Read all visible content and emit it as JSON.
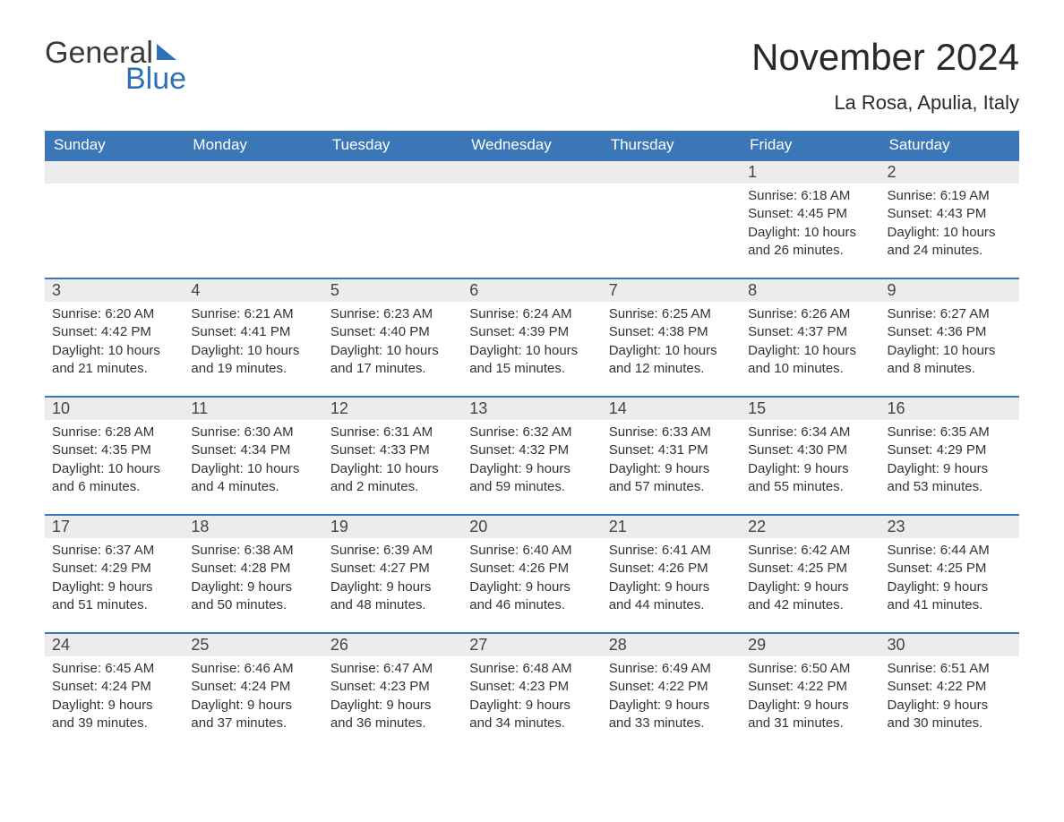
{
  "brand": {
    "word1": "General",
    "word2": "Blue"
  },
  "title": "November 2024",
  "location": "La Rosa, Apulia, Italy",
  "colors": {
    "header_bg": "#3b77b6",
    "header_text": "#ffffff",
    "daynum_bg": "#ececec",
    "row_border": "#3b77b6",
    "brand_blue": "#2f71b8",
    "text": "#333333"
  },
  "day_labels": [
    "Sunday",
    "Monday",
    "Tuesday",
    "Wednesday",
    "Thursday",
    "Friday",
    "Saturday"
  ],
  "weeks": [
    [
      null,
      null,
      null,
      null,
      null,
      {
        "n": "1",
        "sunrise": "Sunrise: 6:18 AM",
        "sunset": "Sunset: 4:45 PM",
        "daylight": "Daylight: 10 hours and 26 minutes."
      },
      {
        "n": "2",
        "sunrise": "Sunrise: 6:19 AM",
        "sunset": "Sunset: 4:43 PM",
        "daylight": "Daylight: 10 hours and 24 minutes."
      }
    ],
    [
      {
        "n": "3",
        "sunrise": "Sunrise: 6:20 AM",
        "sunset": "Sunset: 4:42 PM",
        "daylight": "Daylight: 10 hours and 21 minutes."
      },
      {
        "n": "4",
        "sunrise": "Sunrise: 6:21 AM",
        "sunset": "Sunset: 4:41 PM",
        "daylight": "Daylight: 10 hours and 19 minutes."
      },
      {
        "n": "5",
        "sunrise": "Sunrise: 6:23 AM",
        "sunset": "Sunset: 4:40 PM",
        "daylight": "Daylight: 10 hours and 17 minutes."
      },
      {
        "n": "6",
        "sunrise": "Sunrise: 6:24 AM",
        "sunset": "Sunset: 4:39 PM",
        "daylight": "Daylight: 10 hours and 15 minutes."
      },
      {
        "n": "7",
        "sunrise": "Sunrise: 6:25 AM",
        "sunset": "Sunset: 4:38 PM",
        "daylight": "Daylight: 10 hours and 12 minutes."
      },
      {
        "n": "8",
        "sunrise": "Sunrise: 6:26 AM",
        "sunset": "Sunset: 4:37 PM",
        "daylight": "Daylight: 10 hours and 10 minutes."
      },
      {
        "n": "9",
        "sunrise": "Sunrise: 6:27 AM",
        "sunset": "Sunset: 4:36 PM",
        "daylight": "Daylight: 10 hours and 8 minutes."
      }
    ],
    [
      {
        "n": "10",
        "sunrise": "Sunrise: 6:28 AM",
        "sunset": "Sunset: 4:35 PM",
        "daylight": "Daylight: 10 hours and 6 minutes."
      },
      {
        "n": "11",
        "sunrise": "Sunrise: 6:30 AM",
        "sunset": "Sunset: 4:34 PM",
        "daylight": "Daylight: 10 hours and 4 minutes."
      },
      {
        "n": "12",
        "sunrise": "Sunrise: 6:31 AM",
        "sunset": "Sunset: 4:33 PM",
        "daylight": "Daylight: 10 hours and 2 minutes."
      },
      {
        "n": "13",
        "sunrise": "Sunrise: 6:32 AM",
        "sunset": "Sunset: 4:32 PM",
        "daylight": "Daylight: 9 hours and 59 minutes."
      },
      {
        "n": "14",
        "sunrise": "Sunrise: 6:33 AM",
        "sunset": "Sunset: 4:31 PM",
        "daylight": "Daylight: 9 hours and 57 minutes."
      },
      {
        "n": "15",
        "sunrise": "Sunrise: 6:34 AM",
        "sunset": "Sunset: 4:30 PM",
        "daylight": "Daylight: 9 hours and 55 minutes."
      },
      {
        "n": "16",
        "sunrise": "Sunrise: 6:35 AM",
        "sunset": "Sunset: 4:29 PM",
        "daylight": "Daylight: 9 hours and 53 minutes."
      }
    ],
    [
      {
        "n": "17",
        "sunrise": "Sunrise: 6:37 AM",
        "sunset": "Sunset: 4:29 PM",
        "daylight": "Daylight: 9 hours and 51 minutes."
      },
      {
        "n": "18",
        "sunrise": "Sunrise: 6:38 AM",
        "sunset": "Sunset: 4:28 PM",
        "daylight": "Daylight: 9 hours and 50 minutes."
      },
      {
        "n": "19",
        "sunrise": "Sunrise: 6:39 AM",
        "sunset": "Sunset: 4:27 PM",
        "daylight": "Daylight: 9 hours and 48 minutes."
      },
      {
        "n": "20",
        "sunrise": "Sunrise: 6:40 AM",
        "sunset": "Sunset: 4:26 PM",
        "daylight": "Daylight: 9 hours and 46 minutes."
      },
      {
        "n": "21",
        "sunrise": "Sunrise: 6:41 AM",
        "sunset": "Sunset: 4:26 PM",
        "daylight": "Daylight: 9 hours and 44 minutes."
      },
      {
        "n": "22",
        "sunrise": "Sunrise: 6:42 AM",
        "sunset": "Sunset: 4:25 PM",
        "daylight": "Daylight: 9 hours and 42 minutes."
      },
      {
        "n": "23",
        "sunrise": "Sunrise: 6:44 AM",
        "sunset": "Sunset: 4:25 PM",
        "daylight": "Daylight: 9 hours and 41 minutes."
      }
    ],
    [
      {
        "n": "24",
        "sunrise": "Sunrise: 6:45 AM",
        "sunset": "Sunset: 4:24 PM",
        "daylight": "Daylight: 9 hours and 39 minutes."
      },
      {
        "n": "25",
        "sunrise": "Sunrise: 6:46 AM",
        "sunset": "Sunset: 4:24 PM",
        "daylight": "Daylight: 9 hours and 37 minutes."
      },
      {
        "n": "26",
        "sunrise": "Sunrise: 6:47 AM",
        "sunset": "Sunset: 4:23 PM",
        "daylight": "Daylight: 9 hours and 36 minutes."
      },
      {
        "n": "27",
        "sunrise": "Sunrise: 6:48 AM",
        "sunset": "Sunset: 4:23 PM",
        "daylight": "Daylight: 9 hours and 34 minutes."
      },
      {
        "n": "28",
        "sunrise": "Sunrise: 6:49 AM",
        "sunset": "Sunset: 4:22 PM",
        "daylight": "Daylight: 9 hours and 33 minutes."
      },
      {
        "n": "29",
        "sunrise": "Sunrise: 6:50 AM",
        "sunset": "Sunset: 4:22 PM",
        "daylight": "Daylight: 9 hours and 31 minutes."
      },
      {
        "n": "30",
        "sunrise": "Sunrise: 6:51 AM",
        "sunset": "Sunset: 4:22 PM",
        "daylight": "Daylight: 9 hours and 30 minutes."
      }
    ]
  ]
}
